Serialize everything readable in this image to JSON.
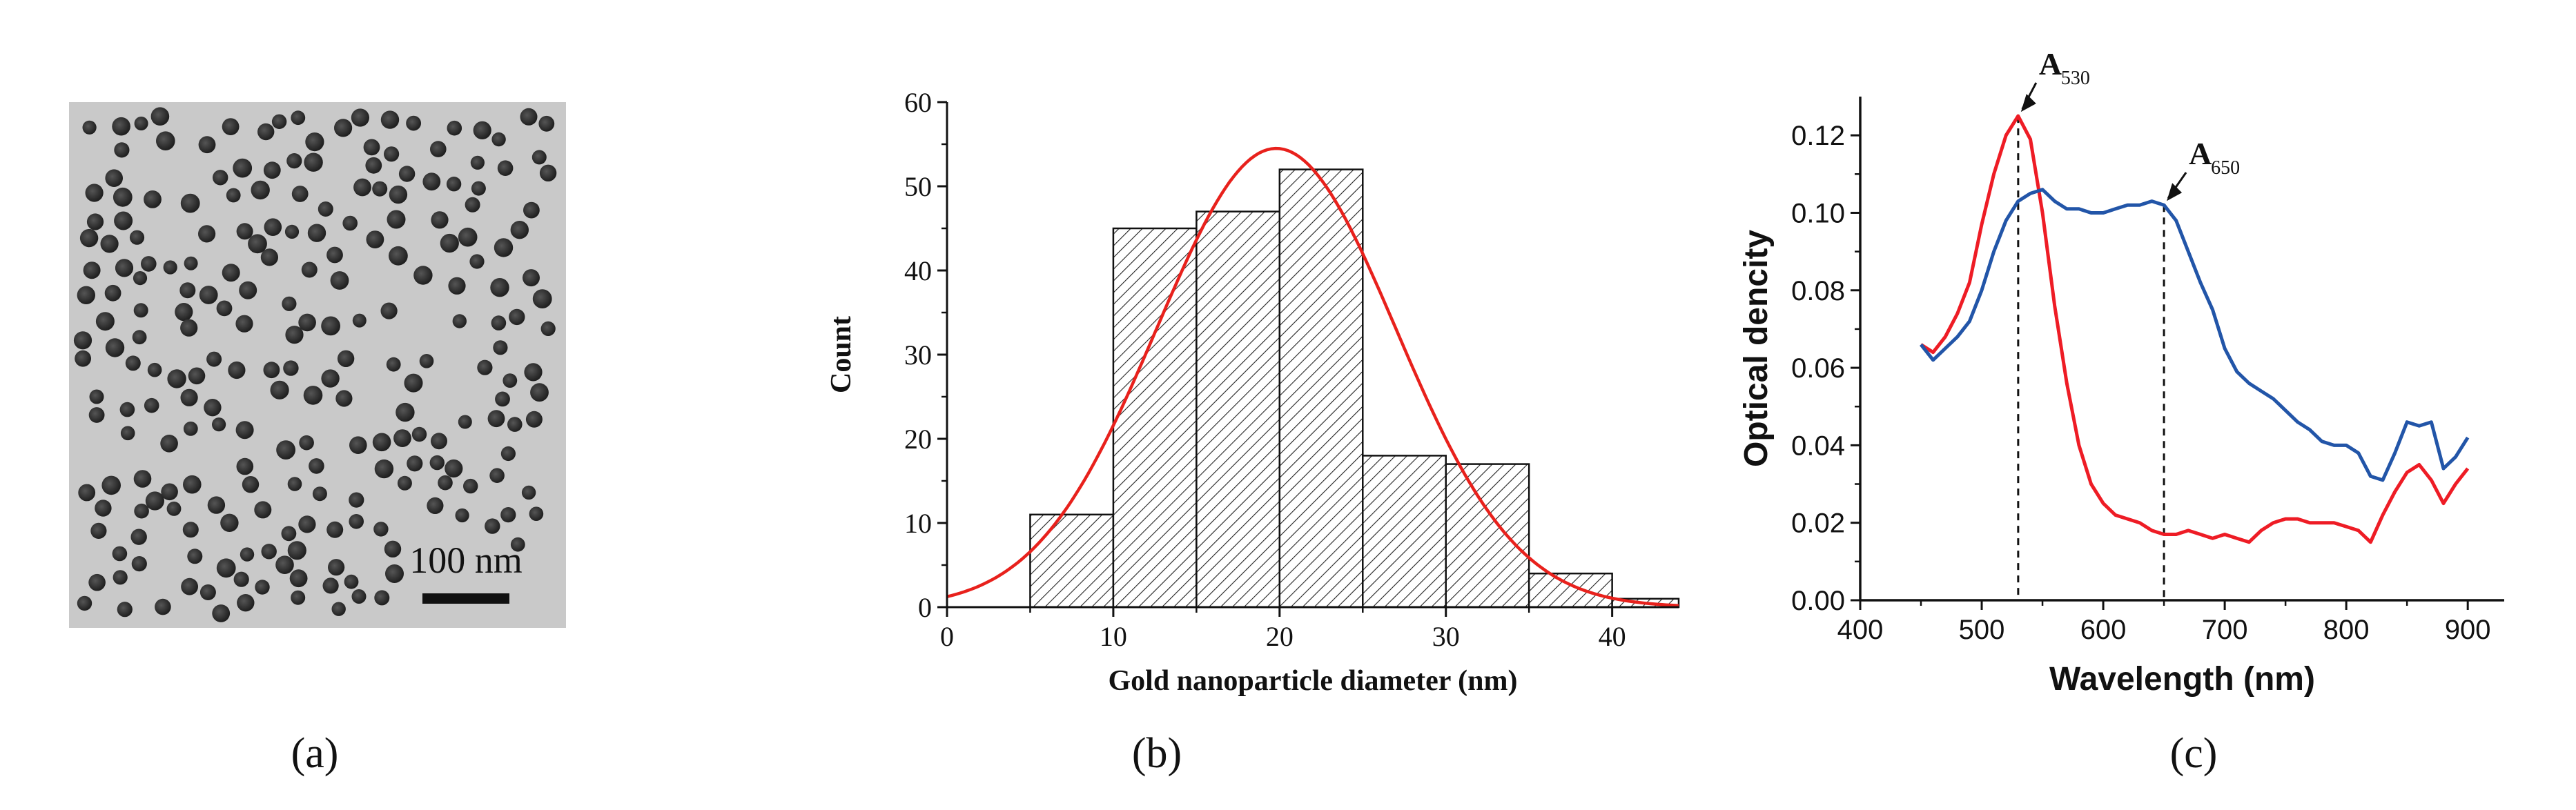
{
  "panel_labels": [
    "(a)",
    "(b)",
    "(c)"
  ],
  "tem_image": {
    "scale_bar_label": "100 nm",
    "background_color": "#c9c9c9",
    "particle_color": "#2b2b2b"
  },
  "chart_data": [
    {
      "type": "bar",
      "subtype": "histogram_with_gaussian_fit",
      "title": "",
      "xlabel": "Gold nanoparticle diameter (nm)",
      "ylabel": "Count",
      "xlim": [
        0,
        44
      ],
      "ylim": [
        0,
        60
      ],
      "x_ticks": [
        0,
        10,
        20,
        30,
        40
      ],
      "y_ticks": [
        0,
        10,
        20,
        30,
        40,
        50,
        60
      ],
      "bin_width": 5,
      "bins": [
        {
          "start": 5,
          "end": 10,
          "count": 11
        },
        {
          "start": 10,
          "end": 15,
          "count": 45
        },
        {
          "start": 15,
          "end": 20,
          "count": 47
        },
        {
          "start": 20,
          "end": 25,
          "count": 52
        },
        {
          "start": 25,
          "end": 30,
          "count": 18
        },
        {
          "start": 30,
          "end": 35,
          "count": 17
        },
        {
          "start": 35,
          "end": 40,
          "count": 4
        },
        {
          "start": 40,
          "end": 45,
          "count": 1
        }
      ],
      "fit": {
        "name": "Gaussian fit",
        "mean": 19.8,
        "sigma": 7.2,
        "amplitude": 54.5,
        "color": "#e8211c"
      },
      "bar_fill": "hatched"
    },
    {
      "type": "line",
      "title": "",
      "xlabel": "Wavelength (nm)",
      "ylabel": "Optical dencity",
      "xlim": [
        400,
        930
      ],
      "ylim": [
        0.0,
        0.13
      ],
      "x_ticks": [
        "400",
        "500",
        "600",
        "700",
        "800",
        "900"
      ],
      "y_ticks": [
        "0.00",
        "0.02",
        "0.04",
        "0.06",
        "0.08",
        "0.10",
        "0.12"
      ],
      "series": [
        {
          "name": "red",
          "color": "#ee1c25",
          "x": [
            450,
            460,
            470,
            480,
            490,
            500,
            510,
            520,
            530,
            540,
            550,
            560,
            570,
            580,
            590,
            600,
            610,
            620,
            630,
            640,
            650,
            660,
            670,
            680,
            690,
            700,
            710,
            720,
            730,
            740,
            750,
            760,
            770,
            780,
            790,
            800,
            810,
            820,
            830,
            840,
            850,
            860,
            870,
            880,
            890,
            900
          ],
          "y": [
            0.066,
            0.064,
            0.068,
            0.074,
            0.082,
            0.097,
            0.11,
            0.12,
            0.125,
            0.119,
            0.1,
            0.076,
            0.056,
            0.04,
            0.03,
            0.025,
            0.022,
            0.021,
            0.02,
            0.018,
            0.017,
            0.017,
            0.018,
            0.017,
            0.016,
            0.017,
            0.016,
            0.015,
            0.018,
            0.02,
            0.021,
            0.021,
            0.02,
            0.02,
            0.02,
            0.019,
            0.018,
            0.015,
            0.022,
            0.028,
            0.033,
            0.035,
            0.031,
            0.025,
            0.03,
            0.034
          ]
        },
        {
          "name": "blue",
          "color": "#2255a8",
          "x": [
            450,
            460,
            470,
            480,
            490,
            500,
            510,
            520,
            530,
            540,
            550,
            560,
            570,
            580,
            590,
            600,
            610,
            620,
            630,
            640,
            650,
            660,
            670,
            680,
            690,
            700,
            710,
            720,
            730,
            740,
            750,
            760,
            770,
            780,
            790,
            800,
            810,
            820,
            830,
            840,
            850,
            860,
            870,
            880,
            890,
            900
          ],
          "y": [
            0.066,
            0.062,
            0.065,
            0.068,
            0.072,
            0.08,
            0.09,
            0.098,
            0.103,
            0.105,
            0.106,
            0.103,
            0.101,
            0.101,
            0.1,
            0.1,
            0.101,
            0.102,
            0.102,
            0.103,
            0.102,
            0.098,
            0.09,
            0.082,
            0.075,
            0.065,
            0.059,
            0.056,
            0.054,
            0.052,
            0.049,
            0.046,
            0.044,
            0.041,
            0.04,
            0.04,
            0.038,
            0.032,
            0.031,
            0.038,
            0.046,
            0.045,
            0.046,
            0.034,
            0.037,
            0.042
          ]
        }
      ],
      "reference_lines": [
        {
          "x": 530,
          "label_main": "A",
          "label_sub": "530"
        },
        {
          "x": 650,
          "label_main": "A",
          "label_sub": "650"
        }
      ]
    }
  ]
}
